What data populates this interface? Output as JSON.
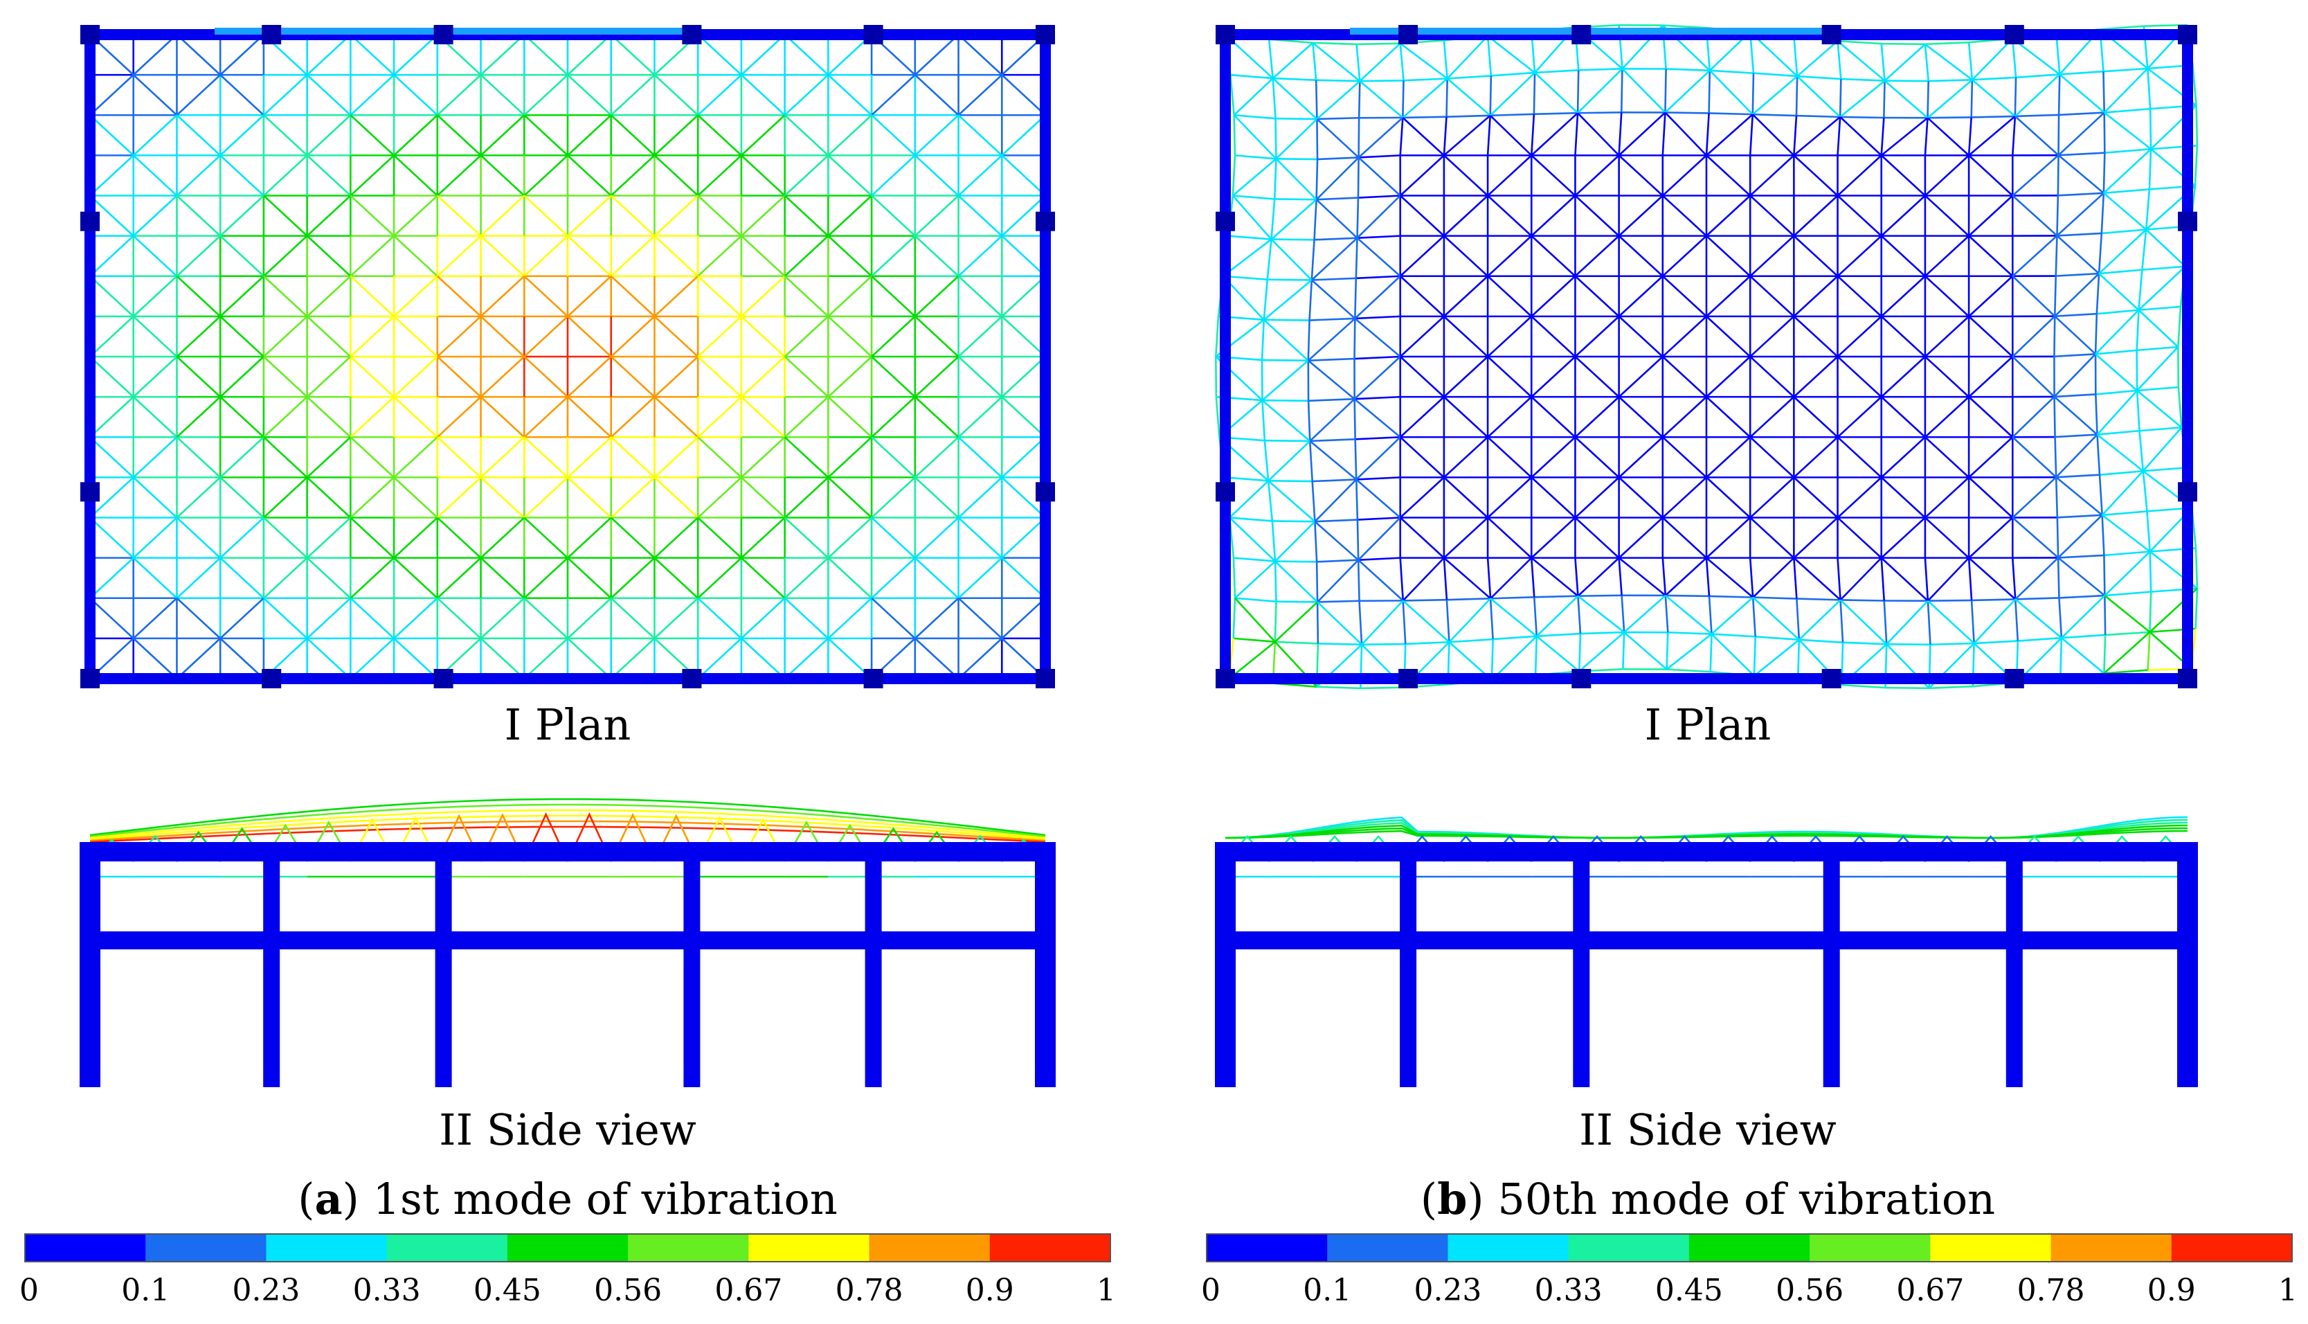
{
  "colorbar": {
    "colors": [
      "#0000ff",
      "#1a6cf0",
      "#00e5ff",
      "#19f0a0",
      "#00dd00",
      "#66ee22",
      "#ffff00",
      "#ff9900",
      "#ff2200"
    ],
    "tick_labels": [
      "0",
      "0.1",
      "0.23",
      "0.33",
      "0.45",
      "0.56",
      "0.67",
      "0.78",
      "0.9",
      "1"
    ]
  },
  "panels": [
    {
      "id": "a",
      "plan_label": "I Plan",
      "side_label": "II Side view",
      "caption_letter": "a",
      "caption_text": "1st mode of vibration",
      "mode": "center"
    },
    {
      "id": "b",
      "plan_label": "I Plan",
      "side_label": "II Side view",
      "caption_letter": "b",
      "caption_text": "50th mode of vibration",
      "mode": "edge"
    }
  ]
}
